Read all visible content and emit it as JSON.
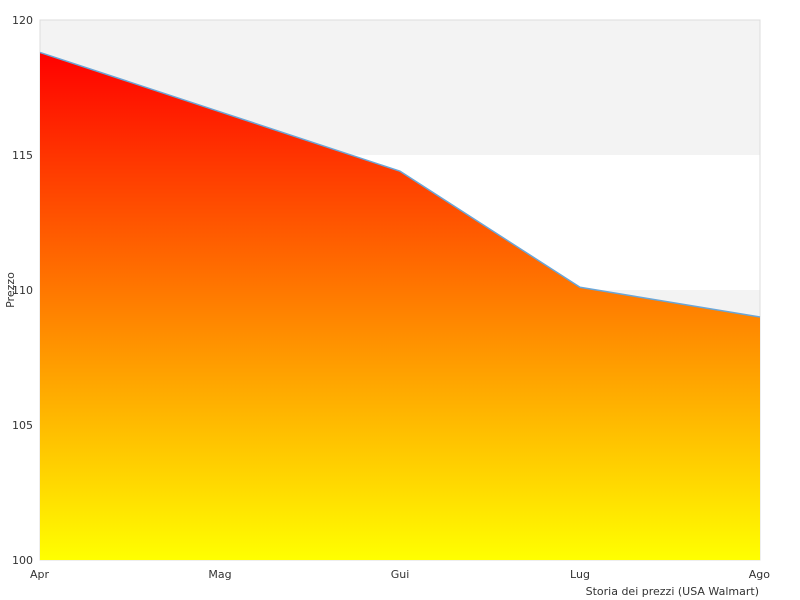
{
  "chart_data": {
    "type": "area",
    "categories": [
      "Apr",
      "Mag",
      "Gui",
      "Lug",
      "Ago"
    ],
    "values": [
      118.8,
      116.6,
      114.4,
      110.1,
      109.0
    ],
    "ylabel": "Prezzo",
    "ylim": [
      100,
      120
    ],
    "yticks": [
      100,
      105,
      110,
      115,
      120
    ],
    "caption": "Storia dei prezzi (USA Walmart)",
    "grid": "alternating horizontal bands",
    "colors": {
      "band": "#f3f3f3",
      "line": "#6aa6d8",
      "gradient_top": "#ff0000",
      "gradient_bottom": "#ffff00",
      "axis": "#dddddd"
    }
  }
}
